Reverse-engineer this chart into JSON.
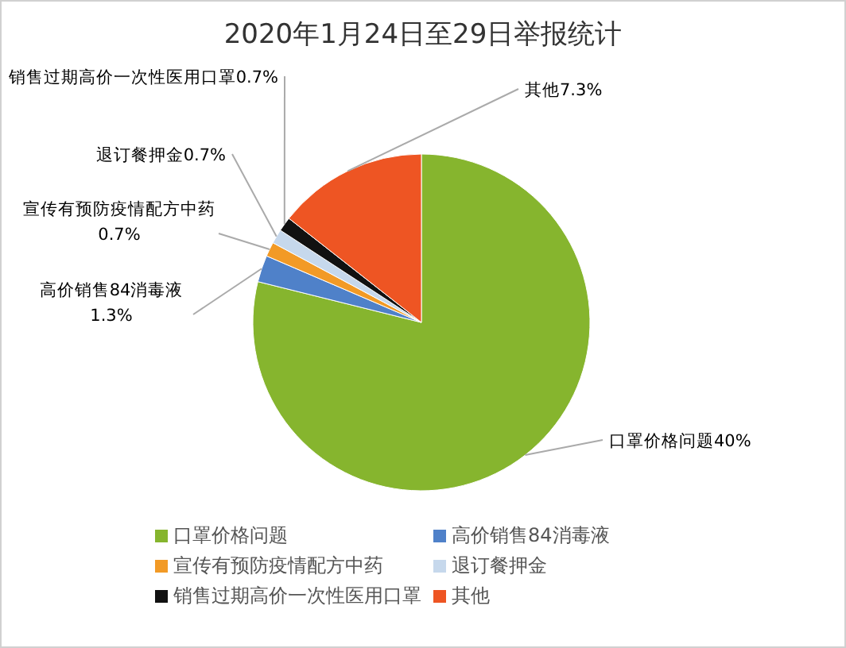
{
  "chart_data": {
    "type": "pie",
    "title": "2020年1月24日至29日举报统计",
    "categories": [
      "口罩价格问题",
      "高价销售84消毒液",
      "宣传有预防疫情配方中药",
      "退订餐押金",
      "销售过期高价一次性医用口罩",
      "其他"
    ],
    "values": [
      40,
      1.3,
      0.7,
      0.7,
      0.7,
      7.3
    ],
    "value_labels": [
      "40%",
      "1.3%",
      "0.7%",
      "0.7%",
      "0.7%",
      "7.3%"
    ],
    "colors": [
      "#86b52e",
      "#4f81c9",
      "#f29a26",
      "#c6d8ec",
      "#111111",
      "#ee5523"
    ],
    "legend": "bottom"
  }
}
